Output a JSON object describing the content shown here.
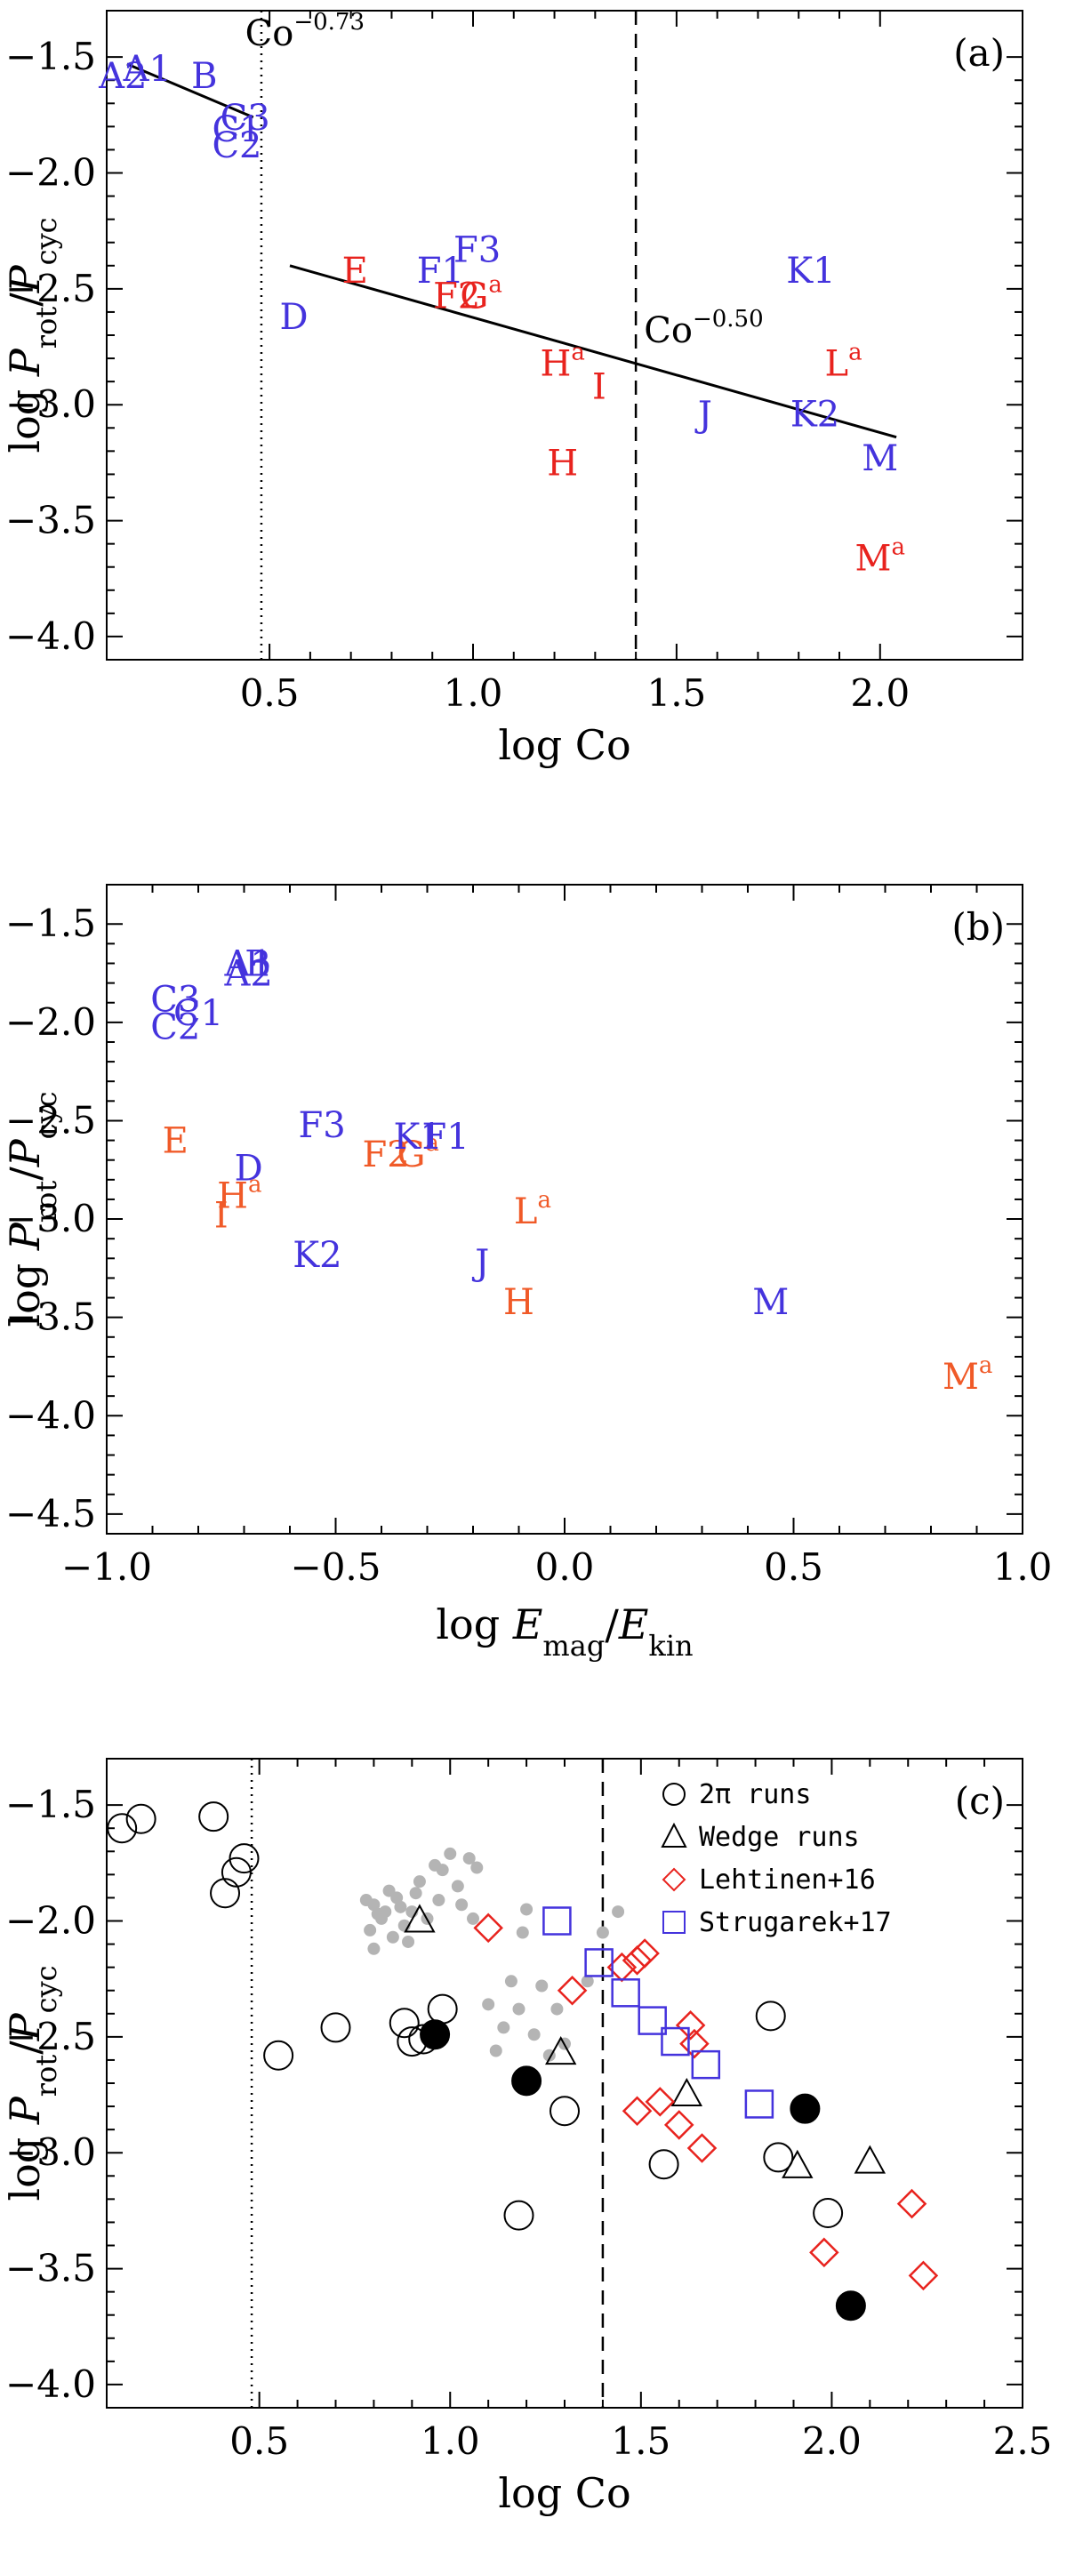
{
  "figure": {
    "colors": {
      "blue": "#4433dd",
      "red": "#e8231e",
      "orange": "#f05a28",
      "gray": "#b4b4b4",
      "black": "#000000"
    }
  },
  "chart_data": [
    {
      "id": "a",
      "type": "scatter",
      "panel_label": "(a)",
      "xlabel": "log Co",
      "ylabel": "log P_rot/P_cyc",
      "xlim": [
        0.1,
        2.35
      ],
      "ylim": [
        -4.1,
        -1.3
      ],
      "xticks": [
        0.5,
        1.0,
        1.5,
        2.0
      ],
      "xticklabels": [
        "0.5",
        "1.0",
        "1.5",
        "2.0"
      ],
      "yticks": [
        -1.5,
        -2.0,
        -2.5,
        -3.0,
        -3.5,
        -4.0
      ],
      "yticklabels": [
        "−1.5",
        "−2.0",
        "−2.5",
        "−3.0",
        "−3.5",
        "−4.0"
      ],
      "vlines": [
        {
          "x": 0.48,
          "style": "dotted"
        },
        {
          "x": 1.4,
          "style": "dashed"
        }
      ],
      "fits": [
        {
          "x": [
            0.15,
            0.46
          ],
          "y": [
            -1.53,
            -1.76
          ],
          "label": "Co",
          "exponent": "−0.73",
          "label_x": 0.44,
          "label_y": -1.45
        },
        {
          "x": [
            0.55,
            2.04
          ],
          "y": [
            -2.4,
            -3.14
          ],
          "label": "Co",
          "exponent": "−0.50",
          "label_x": 1.42,
          "label_y": -2.73
        }
      ],
      "points": [
        {
          "x": 0.2,
          "y": -1.55,
          "label": "A1",
          "color": "blue"
        },
        {
          "x": 0.14,
          "y": -1.58,
          "label": "A2",
          "color": "blue"
        },
        {
          "x": 0.34,
          "y": -1.58,
          "label": "B",
          "color": "blue"
        },
        {
          "x": 0.44,
          "y": -1.76,
          "label": "C3",
          "color": "blue"
        },
        {
          "x": 0.42,
          "y": -1.81,
          "label": "C1",
          "color": "blue"
        },
        {
          "x": 0.42,
          "y": -1.88,
          "label": "C2",
          "color": "blue"
        },
        {
          "x": 0.56,
          "y": -2.62,
          "label": "D",
          "color": "blue"
        },
        {
          "x": 0.71,
          "y": -2.42,
          "label": "E",
          "color": "red"
        },
        {
          "x": 0.92,
          "y": -2.42,
          "label": "F1",
          "color": "blue"
        },
        {
          "x": 0.96,
          "y": -2.53,
          "label": "F2",
          "color": "red"
        },
        {
          "x": 1.02,
          "y": -2.53,
          "label": "G",
          "sup": "a",
          "color": "red"
        },
        {
          "x": 1.01,
          "y": -2.33,
          "label": "F3",
          "color": "blue"
        },
        {
          "x": 1.22,
          "y": -2.82,
          "label": "H",
          "sup": "a",
          "color": "red"
        },
        {
          "x": 1.22,
          "y": -3.25,
          "label": "H",
          "color": "red"
        },
        {
          "x": 1.31,
          "y": -2.92,
          "label": "I",
          "color": "red"
        },
        {
          "x": 1.57,
          "y": -3.04,
          "label": "J",
          "color": "blue"
        },
        {
          "x": 1.83,
          "y": -2.42,
          "label": "K1",
          "color": "blue"
        },
        {
          "x": 1.84,
          "y": -3.04,
          "label": "K2",
          "color": "blue"
        },
        {
          "x": 1.91,
          "y": -2.82,
          "label": "L",
          "sup": "a",
          "color": "red"
        },
        {
          "x": 2.0,
          "y": -3.23,
          "label": "M",
          "color": "blue"
        },
        {
          "x": 2.0,
          "y": -3.66,
          "label": "M",
          "sup": "a",
          "color": "red"
        }
      ]
    },
    {
      "id": "b",
      "type": "scatter",
      "panel_label": "(b)",
      "xlabel": "log E_mag/E_kin",
      "ylabel": "log P_rot/P_cyc",
      "xlim": [
        -1.0,
        1.0
      ],
      "ylim": [
        -4.6,
        -1.3
      ],
      "xticks": [
        -1.0,
        -0.5,
        0.0,
        0.5,
        1.0
      ],
      "xticklabels": [
        "−1.0",
        "−0.5",
        "0.0",
        "0.5",
        "1.0"
      ],
      "yticks": [
        -1.5,
        -2.0,
        -2.5,
        -3.0,
        -3.5,
        -4.0,
        -4.5
      ],
      "yticklabels": [
        "−1.5",
        "−2.0",
        "−2.5",
        "−3.0",
        "−3.5",
        "−4.0",
        "−4.5"
      ],
      "points": [
        {
          "x": -0.69,
          "y": -1.7,
          "label": "A1",
          "color": "blue"
        },
        {
          "x": -0.67,
          "y": -1.7,
          "label": "B",
          "color": "blue"
        },
        {
          "x": -0.69,
          "y": -1.75,
          "label": "A2",
          "color": "blue"
        },
        {
          "x": -0.85,
          "y": -1.88,
          "label": "C3",
          "color": "blue"
        },
        {
          "x": -0.8,
          "y": -1.95,
          "label": "C1",
          "color": "blue"
        },
        {
          "x": -0.85,
          "y": -2.02,
          "label": "C2",
          "color": "blue"
        },
        {
          "x": -0.85,
          "y": -2.6,
          "label": "E",
          "color": "orange"
        },
        {
          "x": -0.53,
          "y": -2.52,
          "label": "F3",
          "color": "blue"
        },
        {
          "x": -0.69,
          "y": -2.74,
          "label": "D",
          "color": "blue"
        },
        {
          "x": -0.71,
          "y": -2.88,
          "label": "H",
          "sup": "a",
          "color": "orange"
        },
        {
          "x": -0.75,
          "y": -2.98,
          "label": "I",
          "color": "orange"
        },
        {
          "x": -0.39,
          "y": -2.67,
          "label": "F2",
          "color": "orange"
        },
        {
          "x": -0.32,
          "y": -2.67,
          "label": "G",
          "sup": "a",
          "color": "orange"
        },
        {
          "x": -0.32,
          "y": -2.58,
          "label": "K1",
          "color": "blue"
        },
        {
          "x": -0.26,
          "y": -2.58,
          "label": "F1",
          "color": "blue"
        },
        {
          "x": -0.54,
          "y": -3.18,
          "label": "K2",
          "color": "blue"
        },
        {
          "x": -0.18,
          "y": -3.22,
          "label": "J",
          "color": "blue"
        },
        {
          "x": -0.07,
          "y": -2.96,
          "label": "L",
          "sup": "a",
          "color": "orange"
        },
        {
          "x": -0.1,
          "y": -3.42,
          "label": "H",
          "color": "orange"
        },
        {
          "x": 0.45,
          "y": -3.42,
          "label": "M",
          "color": "blue"
        },
        {
          "x": 0.88,
          "y": -3.8,
          "label": "M",
          "sup": "a",
          "color": "orange"
        }
      ]
    },
    {
      "id": "c",
      "type": "scatter",
      "panel_label": "(c)",
      "xlabel": "log Co",
      "ylabel": "log P_rot/P_cyc",
      "xlim": [
        0.1,
        2.5
      ],
      "ylim": [
        -4.1,
        -1.3
      ],
      "xticks": [
        0.5,
        1.0,
        1.5,
        2.0,
        2.5
      ],
      "xticklabels": [
        "0.5",
        "1.0",
        "1.5",
        "2.0",
        "2.5"
      ],
      "yticks": [
        -1.5,
        -2.0,
        -2.5,
        -3.0,
        -3.5,
        -4.0
      ],
      "yticklabels": [
        "−1.5",
        "−2.0",
        "−2.5",
        "−3.0",
        "−3.5",
        "−4.0"
      ],
      "vlines": [
        {
          "x": 0.48,
          "style": "dotted"
        },
        {
          "x": 1.4,
          "style": "dashed"
        }
      ],
      "legend": {
        "position": "top-right",
        "entries": [
          {
            "marker": "circle",
            "color": "black",
            "label": "2π runs"
          },
          {
            "marker": "triangle",
            "color": "black",
            "label": "Wedge runs"
          },
          {
            "marker": "diamond",
            "color": "red",
            "label": "Lehtinen+16"
          },
          {
            "marker": "square",
            "color": "blue",
            "label": "Strugarek+17"
          }
        ]
      },
      "series": [
        {
          "name": "2π runs",
          "marker": "circle",
          "color": "black",
          "filled": false,
          "points": [
            [
              0.14,
              -1.6
            ],
            [
              0.19,
              -1.56
            ],
            [
              0.38,
              -1.55
            ],
            [
              0.41,
              -1.88
            ],
            [
              0.44,
              -1.79
            ],
            [
              0.46,
              -1.73
            ],
            [
              0.55,
              -2.58
            ],
            [
              0.7,
              -2.46
            ],
            [
              0.88,
              -2.44
            ],
            [
              0.9,
              -2.52
            ],
            [
              0.93,
              -2.51
            ],
            [
              0.98,
              -2.38
            ],
            [
              1.18,
              -3.27
            ],
            [
              1.3,
              -2.82
            ],
            [
              1.56,
              -3.05
            ],
            [
              1.84,
              -2.41
            ],
            [
              1.86,
              -3.02
            ],
            [
              1.99,
              -3.26
            ]
          ]
        },
        {
          "name": "2π runs (filled)",
          "marker": "circle",
          "color": "black",
          "filled": true,
          "points": [
            [
              0.96,
              -2.49
            ],
            [
              1.2,
              -2.69
            ],
            [
              1.93,
              -2.81
            ],
            [
              2.05,
              -3.66
            ]
          ]
        },
        {
          "name": "2π runs (gray)",
          "marker": "dot",
          "color": "gray",
          "filled": true,
          "points": [
            [
              0.78,
              -1.91
            ],
            [
              0.79,
              -2.04
            ],
            [
              0.8,
              -1.93
            ],
            [
              0.8,
              -2.12
            ],
            [
              0.81,
              -1.97
            ],
            [
              0.82,
              -1.99
            ],
            [
              0.83,
              -1.96
            ],
            [
              0.84,
              -1.87
            ],
            [
              0.85,
              -2.07
            ],
            [
              0.86,
              -1.9
            ],
            [
              0.87,
              -1.94
            ],
            [
              0.88,
              -2.02
            ],
            [
              0.89,
              -2.09
            ],
            [
              0.9,
              -1.96
            ],
            [
              0.91,
              -1.88
            ],
            [
              0.92,
              -1.83
            ],
            [
              0.94,
              -1.99
            ],
            [
              0.96,
              -1.76
            ],
            [
              0.97,
              -1.91
            ],
            [
              0.98,
              -1.78
            ],
            [
              1.0,
              -1.71
            ],
            [
              1.02,
              -1.85
            ],
            [
              1.03,
              -1.93
            ],
            [
              1.05,
              -1.73
            ],
            [
              1.06,
              -1.99
            ],
            [
              1.07,
              -1.77
            ],
            [
              1.1,
              -2.36
            ],
            [
              1.12,
              -2.56
            ],
            [
              1.14,
              -2.46
            ],
            [
              1.16,
              -2.26
            ],
            [
              1.18,
              -2.38
            ],
            [
              1.19,
              -2.05
            ],
            [
              1.2,
              -1.95
            ],
            [
              1.22,
              -2.49
            ],
            [
              1.24,
              -2.28
            ],
            [
              1.26,
              -2.58
            ],
            [
              1.28,
              -2.38
            ],
            [
              1.3,
              -2.53
            ],
            [
              1.36,
              -2.26
            ],
            [
              1.4,
              -2.05
            ],
            [
              1.44,
              -1.96
            ]
          ]
        },
        {
          "name": "Wedge runs",
          "marker": "triangle",
          "color": "black",
          "filled": false,
          "points": [
            [
              0.92,
              -2.0
            ],
            [
              1.29,
              -2.57
            ],
            [
              1.62,
              -2.75
            ],
            [
              1.91,
              -3.06
            ],
            [
              2.1,
              -3.04
            ]
          ]
        },
        {
          "name": "Lehtinen+16",
          "marker": "diamond",
          "color": "red",
          "filled": false,
          "points": [
            [
              1.1,
              -2.03
            ],
            [
              1.32,
              -2.3
            ],
            [
              1.45,
              -2.2
            ],
            [
              1.49,
              -2.17
            ],
            [
              1.51,
              -2.14
            ],
            [
              1.49,
              -2.82
            ],
            [
              1.55,
              -2.78
            ],
            [
              1.6,
              -2.88
            ],
            [
              1.63,
              -2.45
            ],
            [
              1.64,
              -2.53
            ],
            [
              1.66,
              -2.98
            ],
            [
              1.98,
              -3.43
            ],
            [
              2.21,
              -3.22
            ],
            [
              2.24,
              -3.53
            ]
          ]
        },
        {
          "name": "Strugarek+17",
          "marker": "square",
          "color": "blue",
          "filled": false,
          "points": [
            [
              1.28,
              -2.0
            ],
            [
              1.39,
              -2.18
            ],
            [
              1.46,
              -2.31
            ],
            [
              1.53,
              -2.43
            ],
            [
              1.59,
              -2.52
            ],
            [
              1.67,
              -2.62
            ],
            [
              1.81,
              -2.79
            ]
          ]
        }
      ]
    }
  ]
}
